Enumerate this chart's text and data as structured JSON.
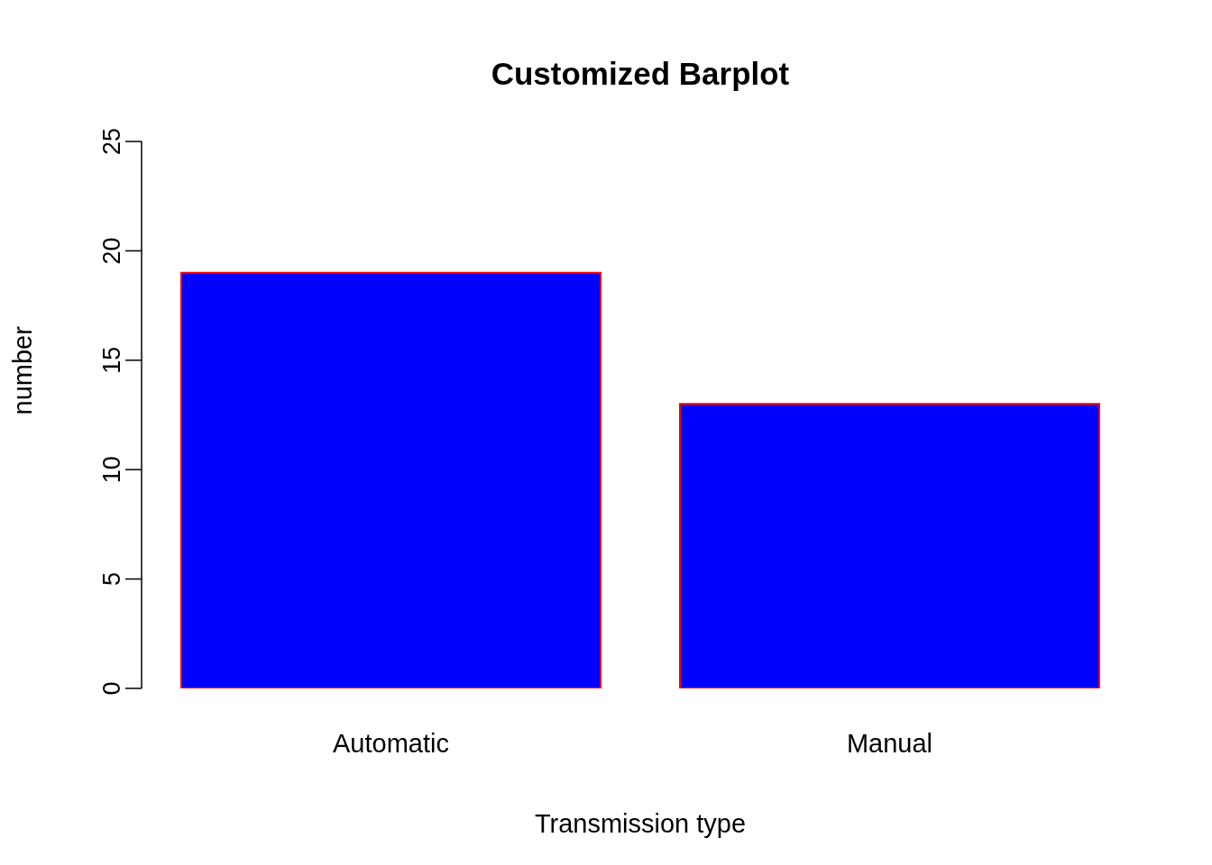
{
  "chart_data": {
    "type": "bar",
    "title": "Customized Barplot",
    "xlabel": "Transmission type",
    "ylabel": "number",
    "categories": [
      "Automatic",
      "Manual"
    ],
    "values": [
      19,
      13
    ],
    "color": "#0000ff",
    "ylim": [
      0,
      25
    ],
    "yticks": [
      0,
      5,
      10,
      15,
      20,
      25
    ]
  }
}
